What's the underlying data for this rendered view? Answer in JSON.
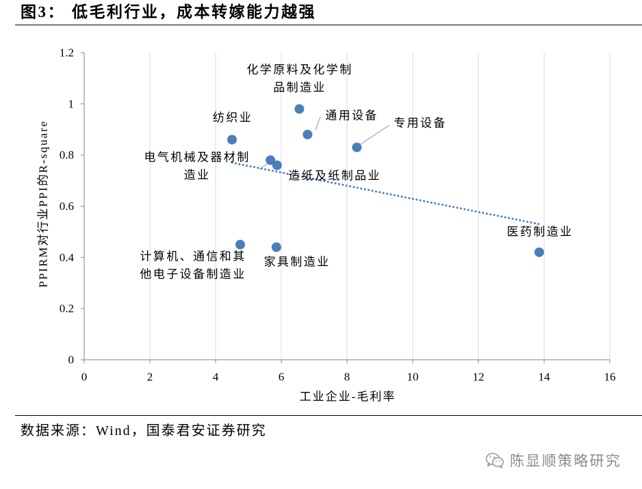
{
  "figure": {
    "number": "图3：",
    "title": "低毛利行业，成本转嫁能力越强"
  },
  "source": "数据来源：Wind，国泰君安证券研究",
  "watermark": {
    "icon": "wechat-icon",
    "text": "陈显顺策略研究"
  },
  "colors": {
    "marker": "#4a7ebb",
    "trendline": "#4a7ebb",
    "axis": "#868686",
    "grid": "#d9d9d9",
    "leader": "#a6a6a6",
    "watermark": "#8a8a8a"
  },
  "chart_data": {
    "type": "scatter",
    "xlabel": "工业企业-毛利率",
    "ylabel": "PPIRM对行业PPI的R-square",
    "xlim": [
      0,
      16
    ],
    "ylim": [
      0,
      1.2
    ],
    "xticks": [
      0,
      2,
      4,
      6,
      8,
      10,
      12,
      14,
      16
    ],
    "yticks": [
      0,
      0.2,
      0.4,
      0.6,
      0.8,
      1,
      1.2
    ],
    "grid": {
      "x": true,
      "y": false
    },
    "legend": "none",
    "points": [
      {
        "label_lines": [
          "化学原料及化学制",
          "品制造业"
        ],
        "x": 6.55,
        "y": 0.98
      },
      {
        "label_lines": [
          "通用设备"
        ],
        "x": 6.8,
        "y": 0.88
      },
      {
        "label_lines": [
          "专用设备"
        ],
        "x": 8.3,
        "y": 0.83
      },
      {
        "label_lines": [
          "纺织业"
        ],
        "x": 4.5,
        "y": 0.86
      },
      {
        "label_lines": [
          "电气机械及器材制",
          "造业"
        ],
        "x": 5.67,
        "y": 0.78
      },
      {
        "label_lines": [
          "造纸及纸制品业"
        ],
        "x": 5.87,
        "y": 0.76
      },
      {
        "label_lines": [
          "医药制造业"
        ],
        "x": 13.85,
        "y": 0.42
      },
      {
        "label_lines": [
          "计算机、通信和其",
          "他电子设备制造业"
        ],
        "x": 4.75,
        "y": 0.45
      },
      {
        "label_lines": [
          "家具制造业"
        ],
        "x": 5.85,
        "y": 0.44
      }
    ],
    "trendline": {
      "type": "linear",
      "style": "dotted",
      "x": [
        4.5,
        13.85
      ],
      "y": [
        0.77,
        0.53
      ]
    }
  }
}
